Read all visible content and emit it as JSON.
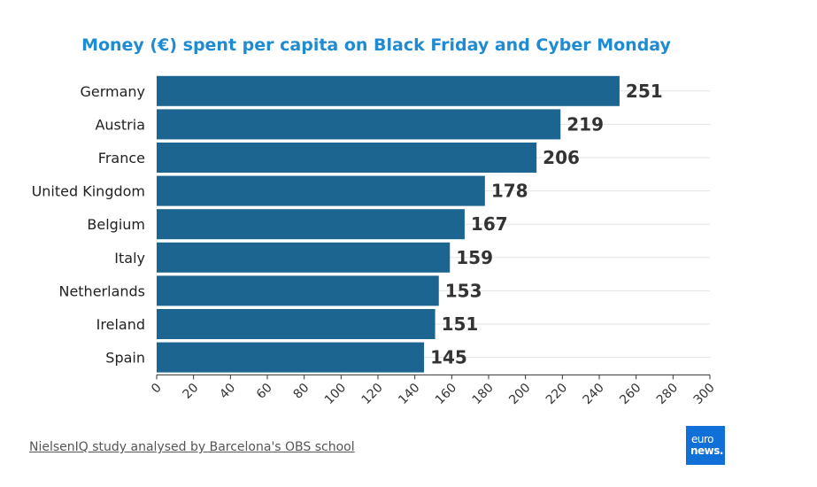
{
  "chart_data": {
    "type": "bar",
    "orientation": "horizontal",
    "title": "Money (€) spent per capita on Black Friday and Cyber Monday",
    "categories": [
      "Germany",
      "Austria",
      "France",
      "United Kingdom",
      "Belgium",
      "Italy",
      "Netherlands",
      "Ireland",
      "Spain"
    ],
    "values": [
      251,
      219,
      206,
      178,
      167,
      159,
      153,
      151,
      145
    ],
    "xlim": [
      0,
      300
    ],
    "xticks": [
      "0",
      "20",
      "40",
      "60",
      "80",
      "100",
      "120",
      "140",
      "160",
      "180",
      "200",
      "220",
      "240",
      "260",
      "280",
      "300"
    ],
    "data_labels": true,
    "grid": true,
    "bar_color": "#1c6591",
    "title_color": "#1e8bd2"
  },
  "footer": {
    "source": "NielsenIQ study analysed by Barcelona's OBS school",
    "logo_line1": "euro",
    "logo_line2": "news."
  }
}
